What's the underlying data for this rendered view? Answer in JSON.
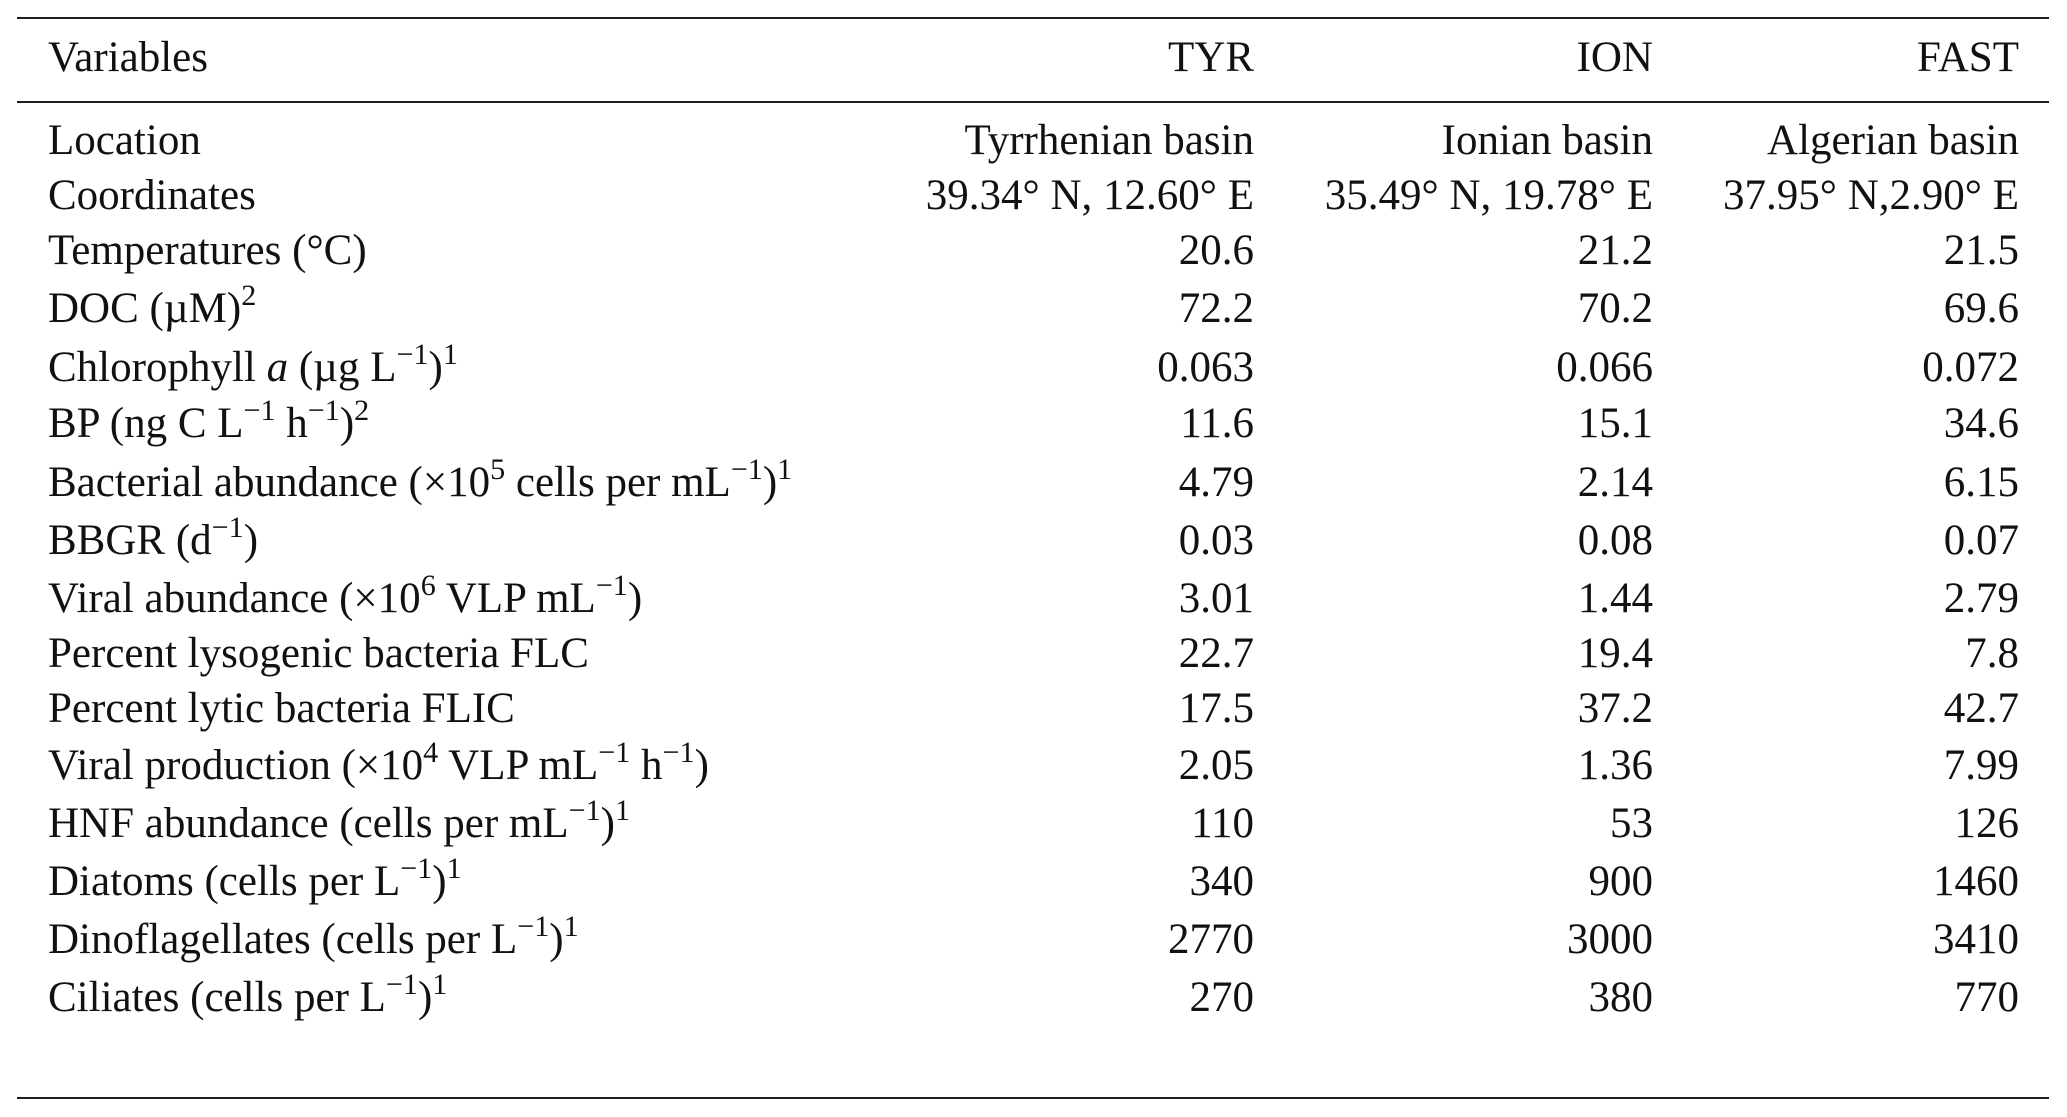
{
  "table": {
    "header": {
      "variables": "Variables",
      "columns": [
        "TYR",
        "ION",
        "FAST"
      ]
    },
    "rows": [
      {
        "label": [
          {
            "t": "Location"
          }
        ],
        "values": [
          "Tyrrhenian basin",
          "Ionian basin",
          "Algerian basin"
        ]
      },
      {
        "label": [
          {
            "t": "Coordinates"
          }
        ],
        "values": [
          "39.34° N, 12.60° E",
          "35.49° N, 19.78° E",
          "37.95° N,2.90° E"
        ]
      },
      {
        "label": [
          {
            "t": "Temperatures (°C)"
          }
        ],
        "values": [
          "20.6",
          "21.2",
          "21.5"
        ]
      },
      {
        "label": [
          {
            "t": "DOC (µM)"
          },
          {
            "t": "2",
            "sup": true
          }
        ],
        "values": [
          "72.2",
          "70.2",
          "69.6"
        ]
      },
      {
        "label": [
          {
            "t": "Chlorophyll "
          },
          {
            "t": "a",
            "i": true
          },
          {
            "t": " (µg L"
          },
          {
            "t": "−1",
            "sup": true
          },
          {
            "t": ")"
          },
          {
            "t": "1",
            "sup": true
          }
        ],
        "values": [
          "0.063",
          "0.066",
          "0.072"
        ]
      },
      {
        "label": [
          {
            "t": "BP (ng C L"
          },
          {
            "t": "−1",
            "sup": true
          },
          {
            "t": " h"
          },
          {
            "t": "−1",
            "sup": true
          },
          {
            "t": ")"
          },
          {
            "t": "2",
            "sup": true
          }
        ],
        "values": [
          "11.6",
          "15.1",
          "34.6"
        ]
      },
      {
        "label": [
          {
            "t": "Bacterial abundance (×10"
          },
          {
            "t": "5",
            "sup": true
          },
          {
            "t": " cells per mL"
          },
          {
            "t": "−1",
            "sup": true
          },
          {
            "t": ")"
          },
          {
            "t": "1",
            "sup": true
          }
        ],
        "values": [
          "4.79",
          "2.14",
          "6.15"
        ]
      },
      {
        "label": [
          {
            "t": "BBGR (d"
          },
          {
            "t": "−1",
            "sup": true
          },
          {
            "t": ")"
          }
        ],
        "values": [
          "0.03",
          "0.08",
          "0.07"
        ]
      },
      {
        "label": [
          {
            "t": "Viral abundance (×10"
          },
          {
            "t": "6",
            "sup": true
          },
          {
            "t": " VLP mL"
          },
          {
            "t": "−1",
            "sup": true
          },
          {
            "t": ")"
          }
        ],
        "values": [
          "3.01",
          "1.44",
          "2.79"
        ]
      },
      {
        "label": [
          {
            "t": "Percent lysogenic bacteria FLC"
          }
        ],
        "values": [
          "22.7",
          "19.4",
          "7.8"
        ]
      },
      {
        "label": [
          {
            "t": "Percent lytic bacteria FLIC"
          }
        ],
        "values": [
          "17.5",
          "37.2",
          "42.7"
        ]
      },
      {
        "label": [
          {
            "t": "Viral production (×10"
          },
          {
            "t": "4",
            "sup": true
          },
          {
            "t": " VLP mL"
          },
          {
            "t": "−1",
            "sup": true
          },
          {
            "t": " h"
          },
          {
            "t": "−1",
            "sup": true
          },
          {
            "t": ")"
          }
        ],
        "values": [
          "2.05",
          "1.36",
          "7.99"
        ]
      },
      {
        "label": [
          {
            "t": "HNF abundance (cells per mL"
          },
          {
            "t": "−1",
            "sup": true
          },
          {
            "t": ")"
          },
          {
            "t": "1",
            "sup": true
          }
        ],
        "values": [
          "110",
          "53",
          "126"
        ]
      },
      {
        "label": [
          {
            "t": "Diatoms (cells per L"
          },
          {
            "t": "−1",
            "sup": true
          },
          {
            "t": ")"
          },
          {
            "t": "1",
            "sup": true
          }
        ],
        "values": [
          "340",
          "900",
          "1460"
        ]
      },
      {
        "label": [
          {
            "t": "Dinoflagellates (cells per L"
          },
          {
            "t": "−1",
            "sup": true
          },
          {
            "t": ")"
          },
          {
            "t": "1",
            "sup": true
          }
        ],
        "values": [
          "2770",
          "3000",
          "3410"
        ]
      },
      {
        "label": [
          {
            "t": "Ciliates (cells per L"
          },
          {
            "t": "−1",
            "sup": true
          },
          {
            "t": ")"
          },
          {
            "t": "1",
            "sup": true
          }
        ],
        "values": [
          "270",
          "380",
          "770"
        ]
      }
    ]
  },
  "chart_data": {
    "type": "table",
    "columns": [
      "Variables",
      "TYR",
      "ION",
      "FAST"
    ],
    "rows": [
      [
        "Location",
        "Tyrrhenian basin",
        "Ionian basin",
        "Algerian basin"
      ],
      [
        "Coordinates",
        "39.34° N, 12.60° E",
        "35.49° N, 19.78° E",
        "37.95° N,2.90° E"
      ],
      [
        "Temperatures (°C)",
        20.6,
        21.2,
        21.5
      ],
      [
        "DOC (µM)^2",
        72.2,
        70.2,
        69.6
      ],
      [
        "Chlorophyll a (µg L^-1)^1",
        0.063,
        0.066,
        0.072
      ],
      [
        "BP (ng C L^-1 h^-1)^2",
        11.6,
        15.1,
        34.6
      ],
      [
        "Bacterial abundance (×10^5 cells per mL^-1)^1",
        4.79,
        2.14,
        6.15
      ],
      [
        "BBGR (d^-1)",
        0.03,
        0.08,
        0.07
      ],
      [
        "Viral abundance (×10^6 VLP mL^-1)",
        3.01,
        1.44,
        2.79
      ],
      [
        "Percent lysogenic bacteria FLC",
        22.7,
        19.4,
        7.8
      ],
      [
        "Percent lytic bacteria FLIC",
        17.5,
        37.2,
        42.7
      ],
      [
        "Viral production (×10^4 VLP mL^-1 h^-1)",
        2.05,
        1.36,
        7.99
      ],
      [
        "HNF abundance (cells per mL^-1)^1",
        110,
        53,
        126
      ],
      [
        "Diatoms (cells per L^-1)^1",
        340,
        900,
        1460
      ],
      [
        "Dinoflagellates (cells per L^-1)^1",
        2770,
        3000,
        3410
      ],
      [
        "Ciliates (cells per L^-1)^1",
        270,
        380,
        770
      ]
    ]
  }
}
